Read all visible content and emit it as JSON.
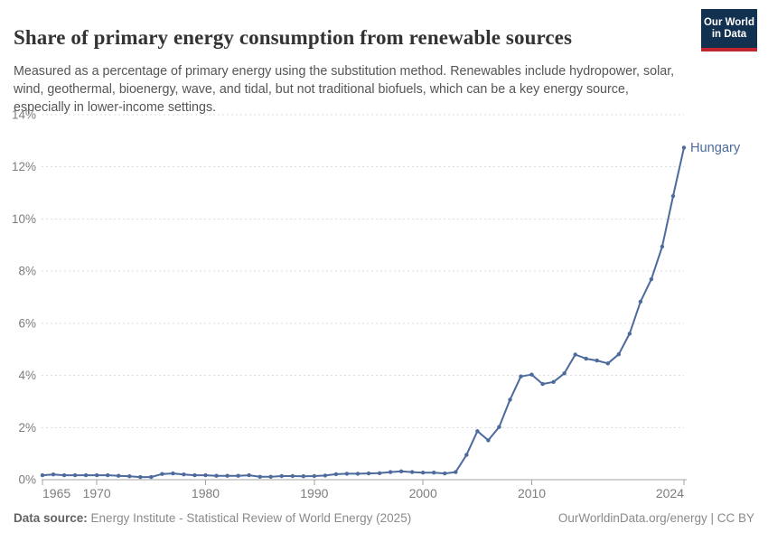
{
  "header": {
    "title": "Share of primary energy consumption from renewable sources",
    "subtitle": "Measured as a percentage of primary energy using the substitution method. Renewables include hydropower, solar, wind, geothermal, bioenergy, wave, and tidal, but not traditional biofuels, which can be a key energy source, especially in lower-income settings."
  },
  "logo": {
    "line1": "Our World",
    "line2": "in Data",
    "bg_color": "#12304f",
    "accent_color": "#c0262d"
  },
  "chart_data": {
    "type": "line",
    "title": "Share of primary energy consumption from renewable sources",
    "xlabel": "",
    "ylabel": "",
    "ylim": [
      0,
      14
    ],
    "xlim": [
      1965,
      2024
    ],
    "grid": "horizontal-dashed",
    "legend_position": "end-of-line-label",
    "y_ticks": [
      0,
      2,
      4,
      6,
      8,
      10,
      12,
      14
    ],
    "y_tick_labels": [
      "0%",
      "2%",
      "4%",
      "6%",
      "8%",
      "10%",
      "12%",
      "14%"
    ],
    "x_ticks": [
      1965,
      1970,
      1980,
      1990,
      2000,
      2010,
      2024
    ],
    "x_tick_labels": [
      "1965",
      "1970",
      "1980",
      "1990",
      "2000",
      "2010",
      "2024"
    ],
    "series": [
      {
        "name": "Hungary",
        "color": "#4C6A9C",
        "x": [
          1965,
          1966,
          1967,
          1968,
          1969,
          1970,
          1971,
          1972,
          1973,
          1974,
          1975,
          1976,
          1977,
          1978,
          1979,
          1980,
          1981,
          1982,
          1983,
          1984,
          1985,
          1986,
          1987,
          1988,
          1989,
          1990,
          1991,
          1992,
          1993,
          1994,
          1995,
          1996,
          1997,
          1998,
          1999,
          2000,
          2001,
          2002,
          2003,
          2004,
          2005,
          2006,
          2007,
          2008,
          2009,
          2010,
          2011,
          2012,
          2013,
          2014,
          2015,
          2016,
          2017,
          2018,
          2019,
          2020,
          2021,
          2022,
          2023,
          2024
        ],
        "values": [
          0.17,
          0.2,
          0.17,
          0.17,
          0.17,
          0.17,
          0.17,
          0.15,
          0.13,
          0.1,
          0.1,
          0.22,
          0.24,
          0.2,
          0.17,
          0.17,
          0.15,
          0.15,
          0.15,
          0.17,
          0.11,
          0.11,
          0.14,
          0.14,
          0.13,
          0.14,
          0.16,
          0.21,
          0.23,
          0.23,
          0.24,
          0.25,
          0.29,
          0.32,
          0.29,
          0.27,
          0.27,
          0.24,
          0.29,
          0.95,
          1.86,
          1.51,
          2.02,
          3.07,
          3.96,
          4.03,
          3.67,
          3.75,
          4.08,
          4.8,
          4.64,
          4.57,
          4.46,
          4.81,
          5.6,
          6.83,
          7.69,
          8.94,
          10.88,
          12.74
        ]
      }
    ],
    "colors": {
      "gridline": "#dcdcdc",
      "axis_line": "#a3a3a3",
      "tick_label": "#7d7d7d"
    }
  },
  "footer": {
    "source_label": "Data source:",
    "source_text": "Energy Institute - Statistical Review of World Energy (2025)",
    "credit": "OurWorldinData.org/energy | CC BY"
  }
}
